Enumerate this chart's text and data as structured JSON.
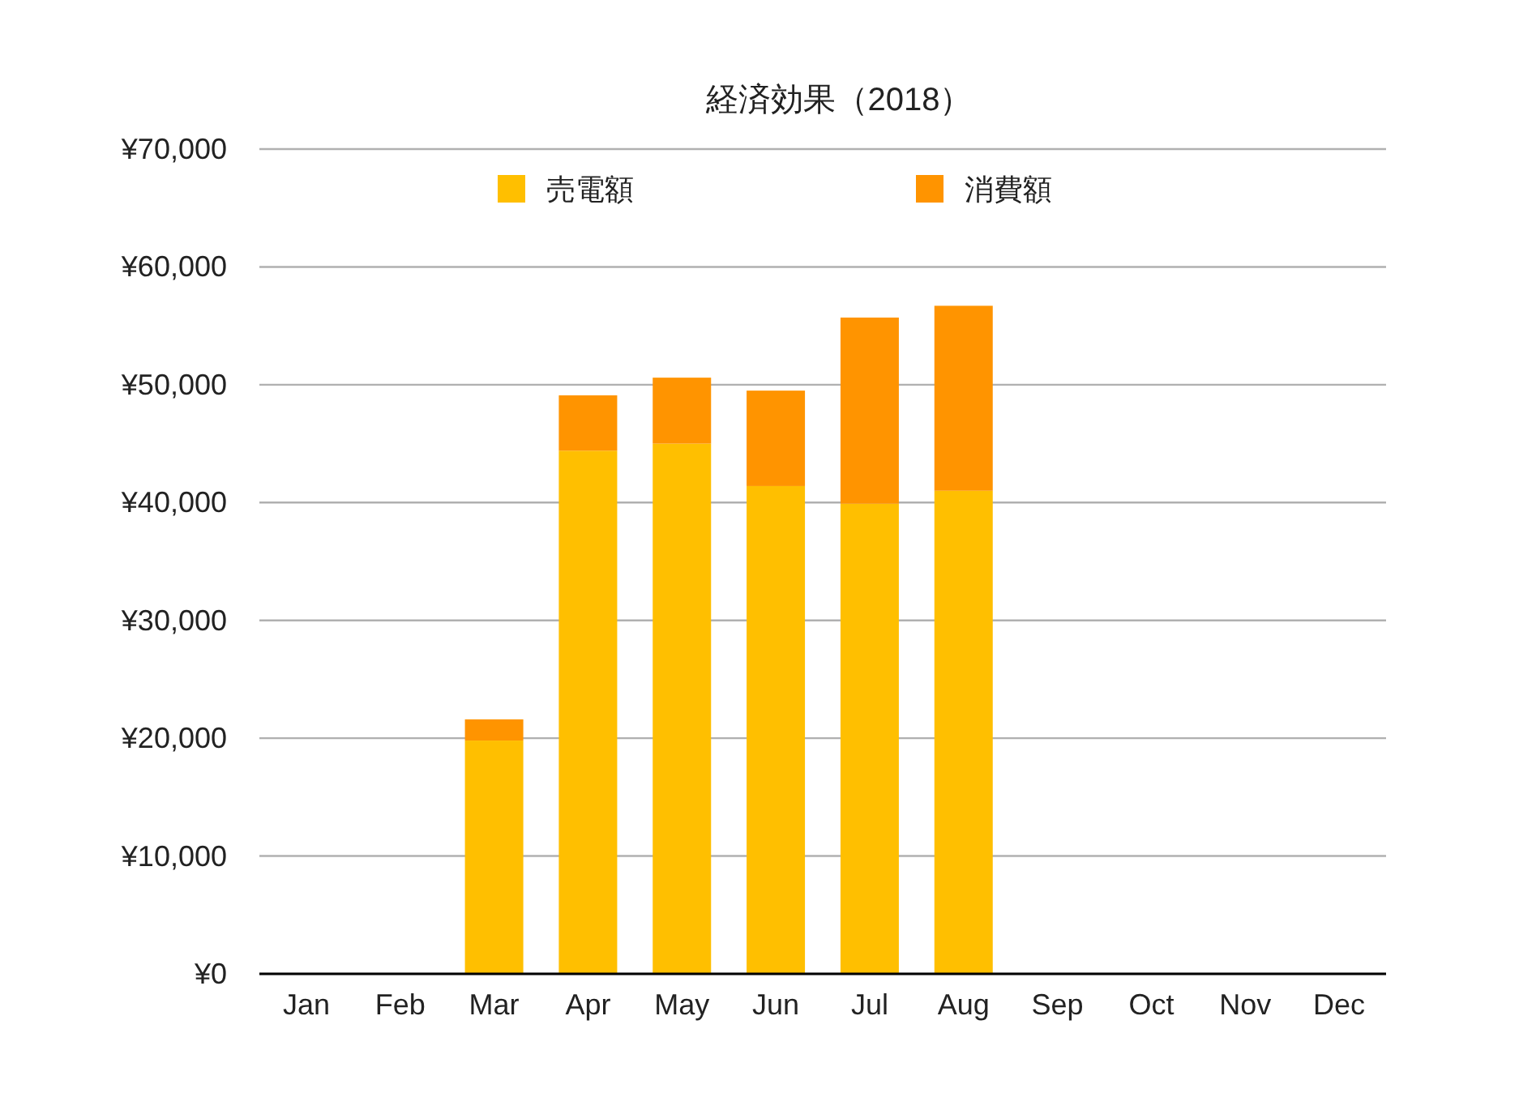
{
  "chart_data": {
    "type": "bar",
    "title": "経済効果（2018）",
    "stacked": true,
    "legend": "top",
    "grid": "y",
    "categories": [
      "Jan",
      "Feb",
      "Mar",
      "Apr",
      "May",
      "Jun",
      "Jul",
      "Aug",
      "Sep",
      "Oct",
      "Nov",
      "Dec"
    ],
    "series": [
      {
        "name": "売電額",
        "color": "#ffbf00",
        "values": [
          null,
          null,
          19800,
          44400,
          45000,
          41400,
          39900,
          41000,
          null,
          null,
          null,
          null
        ]
      },
      {
        "name": "消費額",
        "color": "#ff9400",
        "values": [
          null,
          null,
          1800,
          4700,
          5600,
          8100,
          15800,
          15700,
          null,
          null,
          null,
          null
        ]
      }
    ],
    "ylim": [
      0,
      70000
    ],
    "yticks": [
      {
        "value": 0,
        "label": "¥0"
      },
      {
        "value": 10000,
        "label": "¥10,000"
      },
      {
        "value": 20000,
        "label": "¥20,000"
      },
      {
        "value": 30000,
        "label": "¥30,000"
      },
      {
        "value": 40000,
        "label": "¥40,000"
      },
      {
        "value": 50000,
        "label": "¥50,000"
      },
      {
        "value": 60000,
        "label": "¥60,000"
      },
      {
        "value": 70000,
        "label": "¥70,000"
      }
    ]
  }
}
